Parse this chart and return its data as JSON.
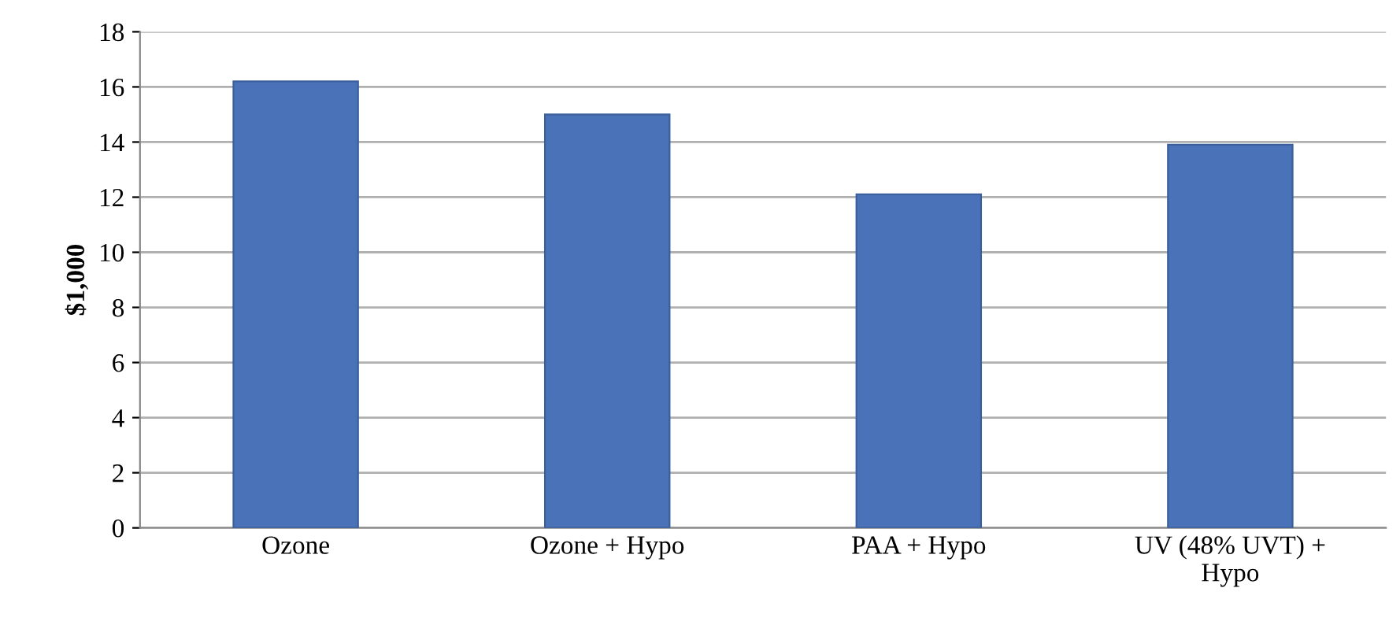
{
  "chart_data": {
    "type": "bar",
    "ylabel": "$1,000",
    "categories": [
      "Ozone",
      "Ozone + Hypo",
      "PAA + Hypo",
      "UV (48% UVT) +\nHypo"
    ],
    "values": [
      16.2,
      15.0,
      12.1,
      13.9
    ],
    "color": "#4a72b8",
    "ylim": [
      0,
      18
    ],
    "yticks": [
      0,
      2,
      4,
      6,
      8,
      10,
      12,
      14,
      16,
      18
    ],
    "grid": "y",
    "legend": false
  }
}
